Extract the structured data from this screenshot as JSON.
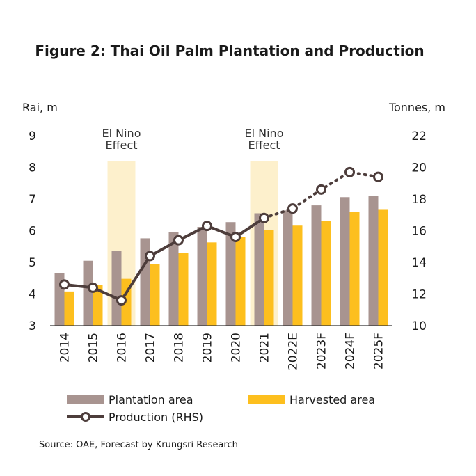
{
  "chart_data": {
    "type": "bar",
    "title": "Figure 2: Thai Oil Palm Plantation and Production",
    "left_axis_unit": "Rai, m",
    "right_axis_unit": "Tonnes, m",
    "categories": [
      "2014",
      "2015",
      "2016",
      "2017",
      "2018",
      "2019",
      "2020",
      "2021",
      "2022E",
      "2023F",
      "2024F",
      "2025F"
    ],
    "left_ylim": [
      3,
      9
    ],
    "left_ticks": [
      "3",
      "4",
      "5",
      "6",
      "7",
      "8",
      "9"
    ],
    "right_ylim": [
      10,
      22
    ],
    "right_ticks": [
      "10",
      "12",
      "14",
      "16",
      "18",
      "20",
      "22"
    ],
    "series": [
      {
        "name": "Plantation area",
        "type": "bar",
        "axis": "left",
        "color": "#a89490",
        "values": [
          4.65,
          5.05,
          5.37,
          5.76,
          5.96,
          6.12,
          6.27,
          6.55,
          6.64,
          6.8,
          7.06,
          7.1
        ]
      },
      {
        "name": "Harvested area",
        "type": "bar",
        "axis": "left",
        "color": "#fdbf1e",
        "values": [
          4.08,
          4.29,
          4.48,
          4.94,
          5.3,
          5.63,
          5.81,
          6.02,
          6.16,
          6.3,
          6.6,
          6.66
        ]
      },
      {
        "name": "Production (RHS)",
        "type": "line",
        "axis": "right",
        "color": "#4d3d3b",
        "values": [
          12.6,
          12.4,
          11.6,
          14.4,
          15.4,
          16.3,
          15.6,
          16.8,
          17.4,
          18.6,
          19.7,
          19.4
        ],
        "solid_until_index": 7
      }
    ],
    "shaded_periods": [
      {
        "label_line1": "El Nino",
        "label_line2": "Effect",
        "category": "2016",
        "color": "#fdf0cc"
      },
      {
        "label_line1": "El Nino",
        "label_line2": "Effect",
        "category": "2021",
        "color": "#fdf0cc"
      }
    ],
    "source": "Source: OAE, Forecast by Krungsri Research"
  }
}
